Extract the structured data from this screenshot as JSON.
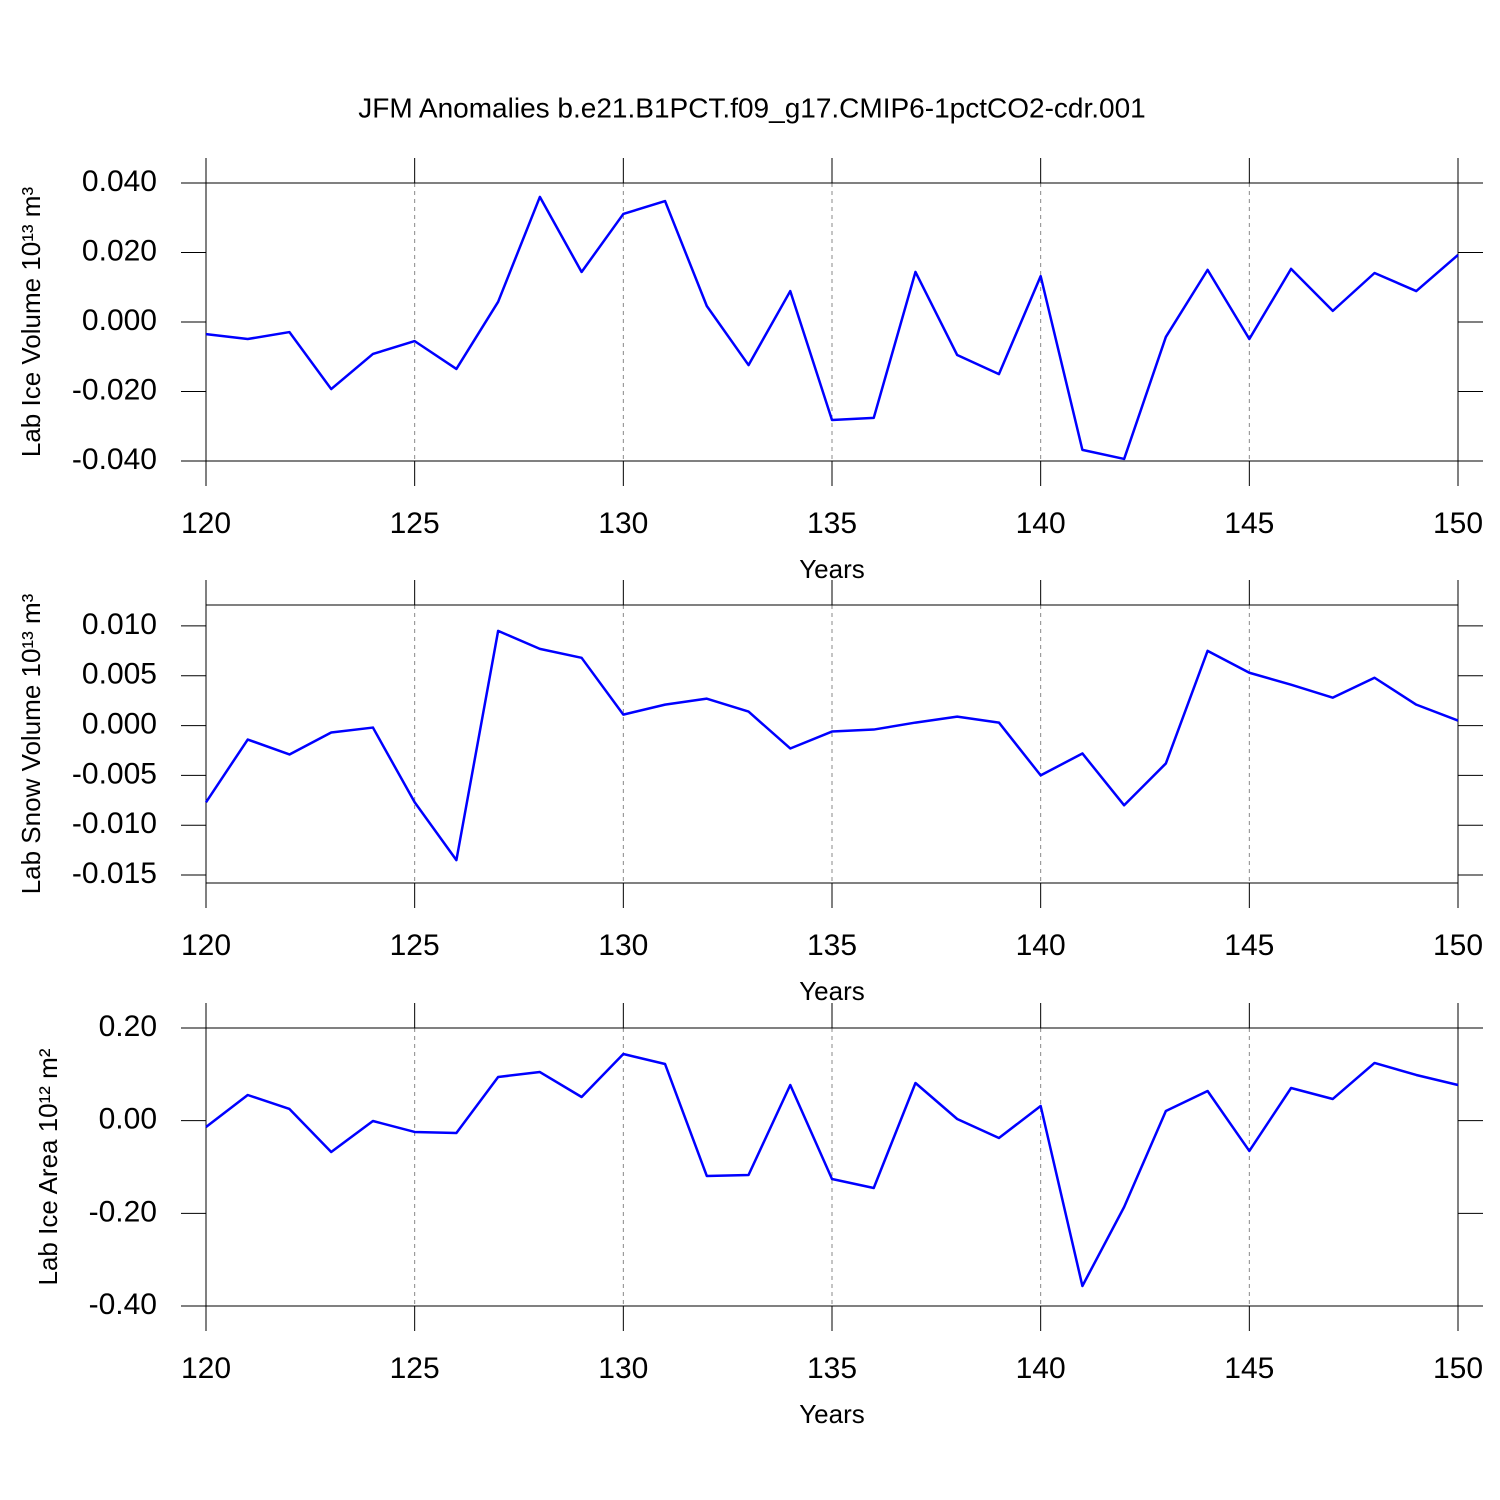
{
  "title": "JFM Anomalies b.e21.B1PCT.f09_g17.CMIP6-1pctCO2-cdr.001",
  "chart_data": [
    {
      "type": "line",
      "ylabel": "Lab Ice Volume 10¹³ m³",
      "xlabel": "Years",
      "x": [
        120,
        121,
        122,
        123,
        124,
        125,
        126,
        127,
        128,
        129,
        130,
        131,
        132,
        133,
        134,
        135,
        136,
        137,
        138,
        139,
        140,
        141,
        142,
        143,
        144,
        145,
        146,
        147,
        148,
        149,
        150
      ],
      "series": [
        {
          "color": "#0000ff",
          "values": [
            -0.0035,
            -0.0049,
            -0.0029,
            -0.0193,
            -0.0092,
            -0.0055,
            -0.0135,
            0.0058,
            0.036,
            0.0144,
            0.0311,
            0.0348,
            0.0046,
            -0.0124,
            0.0089,
            -0.0282,
            -0.0276,
            0.0144,
            -0.0095,
            -0.015,
            0.0132,
            -0.0368,
            -0.0394,
            -0.0043,
            0.015,
            -0.0049,
            0.0153,
            0.0032,
            0.0141,
            0.0089,
            0.0193
          ]
        }
      ],
      "xlim": [
        120,
        150
      ],
      "xticks": [
        120,
        125,
        130,
        135,
        140,
        145,
        150
      ],
      "ylim": [
        -0.04,
        0.04
      ],
      "yticks": [
        {
          "value": -0.04,
          "label": "-0.040"
        },
        {
          "value": -0.02,
          "label": "-0.020"
        },
        {
          "value": 0,
          "label": "0.000"
        },
        {
          "value": 0.02,
          "label": "0.020"
        },
        {
          "value": 0.04,
          "label": "0.040"
        }
      ],
      "grid": true
    },
    {
      "type": "line",
      "ylabel": "Lab Snow Volume 10¹³ m³",
      "xlabel": "Years",
      "x": [
        120,
        121,
        122,
        123,
        124,
        125,
        126,
        127,
        128,
        129,
        130,
        131,
        132,
        133,
        134,
        135,
        136,
        137,
        138,
        139,
        140,
        141,
        142,
        143,
        144,
        145,
        146,
        147,
        148,
        149,
        150
      ],
      "series": [
        {
          "color": "#0000ff",
          "values": [
            -0.0077,
            -0.0014,
            -0.0029,
            -0.0007,
            -0.0002,
            -0.0077,
            -0.0135,
            0.0095,
            0.0077,
            0.0068,
            0.0011,
            0.0021,
            0.0027,
            0.0014,
            -0.0023,
            -0.0006,
            -0.0004,
            0.0003,
            0.0009,
            0.0003,
            -0.005,
            -0.0028,
            -0.008,
            -0.0038,
            0.0075,
            0.0053,
            0.0041,
            0.0028,
            0.0048,
            0.0021,
            0.0005
          ]
        }
      ],
      "xlim": [
        120,
        150
      ],
      "xticks": [
        120,
        125,
        130,
        135,
        140,
        145,
        150
      ],
      "ylim": [
        -0.0158,
        0.0121
      ],
      "yticks": [
        {
          "value": -0.015,
          "label": "-0.015"
        },
        {
          "value": -0.01,
          "label": "-0.010"
        },
        {
          "value": -0.005,
          "label": "-0.005"
        },
        {
          "value": 0,
          "label": "0.000"
        },
        {
          "value": 0.005,
          "label": "0.005"
        },
        {
          "value": 0.01,
          "label": "0.010"
        }
      ],
      "grid": true
    },
    {
      "type": "line",
      "ylabel": "Lab Ice Area 10¹² m²",
      "xlabel": "Years",
      "x": [
        120,
        121,
        122,
        123,
        124,
        125,
        126,
        127,
        128,
        129,
        130,
        131,
        132,
        133,
        134,
        135,
        136,
        137,
        138,
        139,
        140,
        141,
        142,
        143,
        144,
        145,
        146,
        147,
        148,
        149,
        150
      ],
      "series": [
        {
          "color": "#0000ff",
          "values": [
            -0.0137,
            0.0554,
            0.0252,
            -0.0676,
            -0.0007,
            -0.0244,
            -0.0266,
            0.0943,
            0.105,
            0.0511,
            0.1439,
            0.1223,
            -0.1194,
            -0.1172,
            0.077,
            -0.1259,
            -0.1453,
            0.0813,
            0.0036,
            -0.0374,
            0.0317,
            -0.3568,
            -0.1863,
            0.0209,
            0.064,
            -0.0654,
            0.0705,
            0.0468,
            0.1245,
            0.0986,
            0.077
          ]
        }
      ],
      "xlim": [
        120,
        150
      ],
      "xticks": [
        120,
        125,
        130,
        135,
        140,
        145,
        150
      ],
      "ylim": [
        -0.4,
        0.2
      ],
      "yticks": [
        {
          "value": -0.4,
          "label": "-0.40"
        },
        {
          "value": -0.2,
          "label": "-0.20"
        },
        {
          "value": 0,
          "label": "0.00"
        },
        {
          "value": 0.2,
          "label": "0.20"
        }
      ],
      "grid": true
    }
  ]
}
